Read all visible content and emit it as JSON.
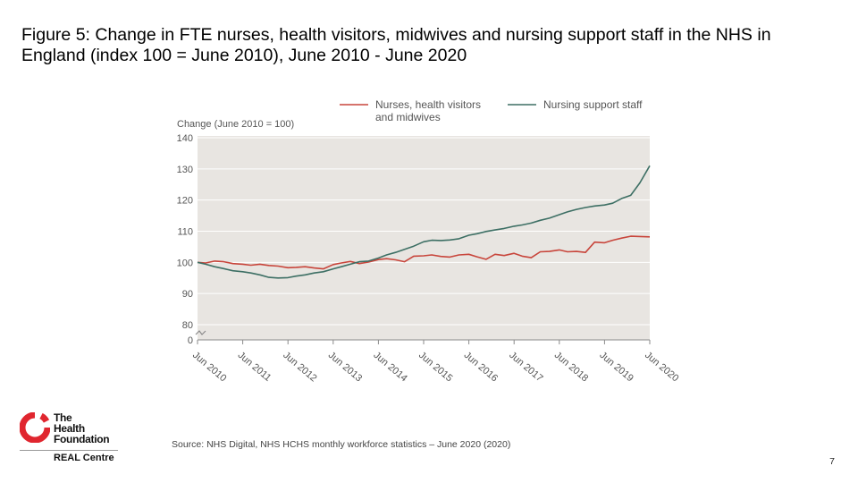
{
  "slide": {
    "title": "Figure 5: Change in FTE nurses, health visitors, midwives and nursing support staff in the NHS in England (index 100 = June 2010), June 2010 - June 2020",
    "source": "Source: NHS Digital, NHS HCHS monthly workforce statistics – June 2020 (2020)",
    "page_number": "7"
  },
  "logo": {
    "name_lines": [
      "The",
      "Health",
      "Foundation"
    ],
    "sub": "REAL Centre"
  },
  "colors": {
    "nurses": "#c8453b",
    "support": "#3d6f64",
    "plot_bg": "#e8e5e1",
    "grid": "#ffffff",
    "axis_text": "#555555"
  },
  "chart_data": {
    "type": "line",
    "title": "",
    "ylabel": "Change (June 2010 = 100)",
    "ylim": [
      80,
      140
    ],
    "yticks": [
      140,
      130,
      120,
      110,
      100,
      90,
      80,
      0
    ],
    "axis_break": true,
    "xlim": [
      2010.42,
      2020.42
    ],
    "xticks": [
      {
        "x": 2010.42,
        "label": "Jun 2010"
      },
      {
        "x": 2011.42,
        "label": "Jun 2011"
      },
      {
        "x": 2012.42,
        "label": "Jun 2012"
      },
      {
        "x": 2013.42,
        "label": "Jun 2013"
      },
      {
        "x": 2014.42,
        "label": "Jun 2014"
      },
      {
        "x": 2015.42,
        "label": "Jun 2015"
      },
      {
        "x": 2016.42,
        "label": "Jun 2016"
      },
      {
        "x": 2017.42,
        "label": "Jun 2017"
      },
      {
        "x": 2018.42,
        "label": "Jun 2018"
      },
      {
        "x": 2019.42,
        "label": "Jun 2019"
      },
      {
        "x": 2020.42,
        "label": "Jun 2020"
      }
    ],
    "grid": true,
    "legend_position": "top",
    "series": [
      {
        "name": "Nurses, health visitors and midwives",
        "color_key": "nurses",
        "points": [
          [
            2010.42,
            100.0
          ],
          [
            2010.6,
            99.8
          ],
          [
            2010.8,
            100.4
          ],
          [
            2011.0,
            100.2
          ],
          [
            2011.2,
            99.6
          ],
          [
            2011.42,
            99.4
          ],
          [
            2011.6,
            99.1
          ],
          [
            2011.8,
            99.4
          ],
          [
            2012.0,
            99.0
          ],
          [
            2012.2,
            98.8
          ],
          [
            2012.42,
            98.3
          ],
          [
            2012.6,
            98.4
          ],
          [
            2012.8,
            98.6
          ],
          [
            2013.0,
            98.2
          ],
          [
            2013.2,
            97.9
          ],
          [
            2013.42,
            99.3
          ],
          [
            2013.6,
            99.8
          ],
          [
            2013.8,
            100.3
          ],
          [
            2014.0,
            99.6
          ],
          [
            2014.2,
            100.1
          ],
          [
            2014.42,
            100.9
          ],
          [
            2014.6,
            101.2
          ],
          [
            2014.8,
            100.8
          ],
          [
            2015.0,
            100.2
          ],
          [
            2015.2,
            102.0
          ],
          [
            2015.42,
            102.1
          ],
          [
            2015.6,
            102.4
          ],
          [
            2015.8,
            101.9
          ],
          [
            2016.0,
            101.7
          ],
          [
            2016.2,
            102.4
          ],
          [
            2016.42,
            102.6
          ],
          [
            2016.6,
            101.8
          ],
          [
            2016.8,
            101.0
          ],
          [
            2017.0,
            102.6
          ],
          [
            2017.2,
            102.2
          ],
          [
            2017.42,
            102.9
          ],
          [
            2017.6,
            102.0
          ],
          [
            2017.8,
            101.5
          ],
          [
            2018.0,
            103.4
          ],
          [
            2018.2,
            103.5
          ],
          [
            2018.42,
            104.0
          ],
          [
            2018.6,
            103.4
          ],
          [
            2018.8,
            103.5
          ],
          [
            2019.0,
            103.2
          ],
          [
            2019.2,
            106.5
          ],
          [
            2019.42,
            106.3
          ],
          [
            2019.6,
            107.1
          ],
          [
            2019.8,
            107.8
          ],
          [
            2020.0,
            108.4
          ],
          [
            2020.2,
            108.3
          ],
          [
            2020.42,
            108.2
          ]
        ]
      },
      {
        "name": "Nursing support staff",
        "color_key": "support",
        "points": [
          [
            2010.42,
            100.0
          ],
          [
            2010.6,
            99.4
          ],
          [
            2010.8,
            98.6
          ],
          [
            2011.0,
            98.0
          ],
          [
            2011.2,
            97.3
          ],
          [
            2011.42,
            97.0
          ],
          [
            2011.6,
            96.6
          ],
          [
            2011.8,
            96.0
          ],
          [
            2012.0,
            95.2
          ],
          [
            2012.2,
            95.0
          ],
          [
            2012.42,
            95.1
          ],
          [
            2012.6,
            95.6
          ],
          [
            2012.8,
            96.0
          ],
          [
            2013.0,
            96.6
          ],
          [
            2013.2,
            97.0
          ],
          [
            2013.42,
            97.9
          ],
          [
            2013.6,
            98.6
          ],
          [
            2013.8,
            99.4
          ],
          [
            2014.0,
            100.2
          ],
          [
            2014.2,
            100.4
          ],
          [
            2014.42,
            101.4
          ],
          [
            2014.6,
            102.4
          ],
          [
            2014.8,
            103.2
          ],
          [
            2015.0,
            104.2
          ],
          [
            2015.2,
            105.2
          ],
          [
            2015.42,
            106.6
          ],
          [
            2015.6,
            107.1
          ],
          [
            2015.8,
            107.0
          ],
          [
            2016.0,
            107.2
          ],
          [
            2016.2,
            107.6
          ],
          [
            2016.42,
            108.7
          ],
          [
            2016.6,
            109.2
          ],
          [
            2016.8,
            109.9
          ],
          [
            2017.0,
            110.4
          ],
          [
            2017.2,
            110.9
          ],
          [
            2017.42,
            111.6
          ],
          [
            2017.6,
            112.0
          ],
          [
            2017.8,
            112.6
          ],
          [
            2018.0,
            113.5
          ],
          [
            2018.2,
            114.2
          ],
          [
            2018.42,
            115.3
          ],
          [
            2018.6,
            116.2
          ],
          [
            2018.8,
            117.0
          ],
          [
            2019.0,
            117.6
          ],
          [
            2019.2,
            118.1
          ],
          [
            2019.42,
            118.4
          ],
          [
            2019.6,
            119.0
          ],
          [
            2019.8,
            120.5
          ],
          [
            2020.0,
            121.5
          ],
          [
            2020.2,
            125.5
          ],
          [
            2020.42,
            131.0
          ]
        ]
      }
    ]
  }
}
